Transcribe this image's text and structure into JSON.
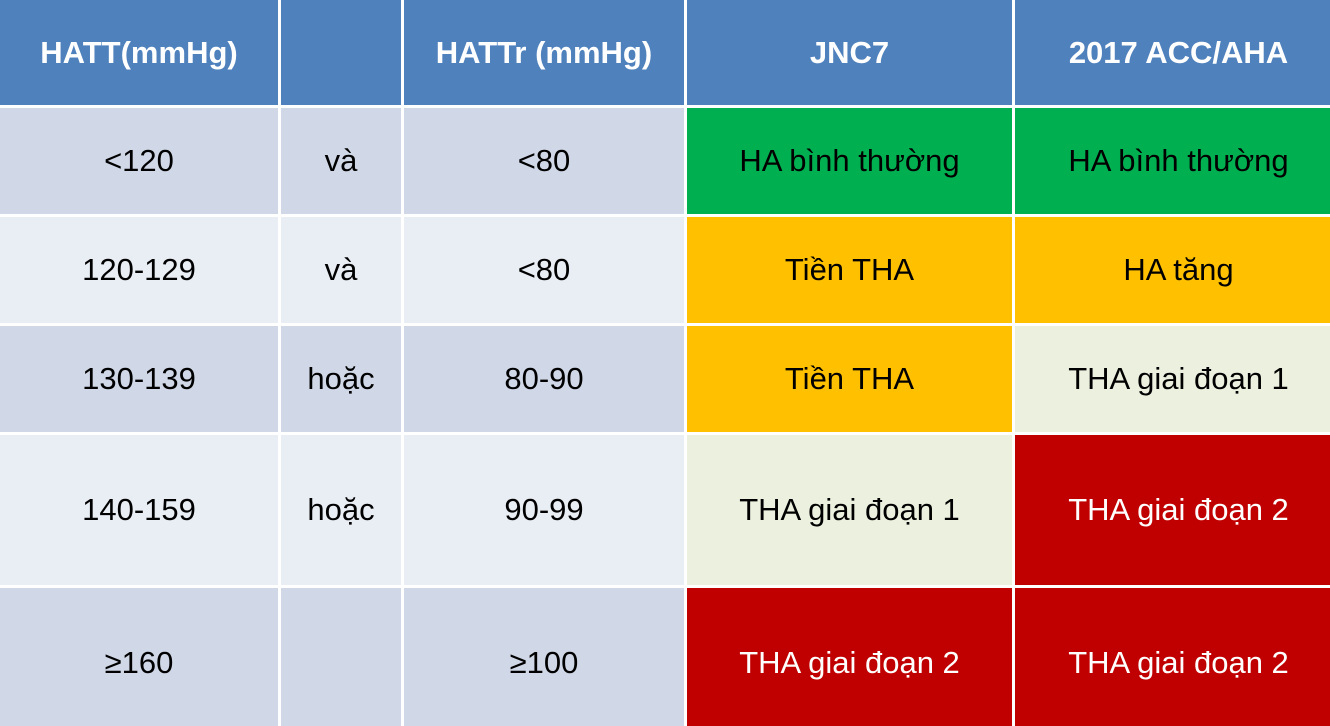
{
  "table": {
    "headers": [
      "HATT(mmHg)",
      "",
      "HATTr (mmHg)",
      "JNC7",
      "2017 ACC/AHA"
    ],
    "rows": [
      {
        "hatt": "<120",
        "conj": "và",
        "hattr": "<80",
        "jnc7": "HA bình thường",
        "acc": "HA bình thường"
      },
      {
        "hatt": "120-129",
        "conj": "và",
        "hattr": "<80",
        "jnc7": "Tiền THA",
        "acc": "HA tăng"
      },
      {
        "hatt": "130-139",
        "conj": "hoặc",
        "hattr": "80-90",
        "jnc7": "Tiền THA",
        "acc": "THA giai đoạn 1"
      },
      {
        "hatt": "140-159",
        "conj": "hoặc",
        "hattr": "90-99",
        "jnc7": "THA giai đoạn 1",
        "acc": "THA giai đoạn 2"
      },
      {
        "hatt": "≥160",
        "conj": "",
        "hattr": "≥100",
        "jnc7": "THA giai đoạn 2",
        "acc": "THA giai đoạn 2"
      }
    ]
  },
  "colors": {
    "header": "#4f81bd",
    "row_dark": "#d0d8e8",
    "row_light": "#e9edf4",
    "normal_green": "#00b050",
    "prehypertension_amber": "#ffc000",
    "stage1_pale": "#ebf1de",
    "stage2_red": "#c00000"
  }
}
